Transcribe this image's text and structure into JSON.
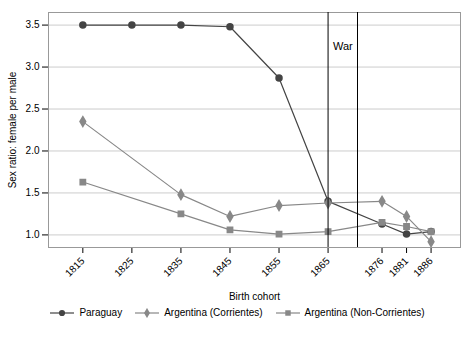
{
  "chart_data": {
    "type": "line",
    "xlabel": "Birth cohort",
    "ylabel": "Sex ratio: female per male",
    "series": [
      {
        "name": "Paraguay",
        "color": "#444444",
        "marker": "circle",
        "x": [
          1815,
          1825,
          1835,
          1845,
          1855,
          1865,
          1876,
          1881,
          1886
        ],
        "values": [
          3.5,
          3.5,
          3.5,
          3.48,
          2.87,
          1.4,
          1.13,
          1.01,
          1.04
        ]
      },
      {
        "name": "Argentina (Corrientes)",
        "color": "#888888",
        "marker": "diamond",
        "x": [
          1815,
          1835,
          1845,
          1855,
          1865,
          1876,
          1881,
          1886
        ],
        "values": [
          2.35,
          1.48,
          1.22,
          1.35,
          1.38,
          1.4,
          1.22,
          0.92
        ]
      },
      {
        "name": "Argentina (Non-Corrientes)",
        "color": "#888888",
        "marker": "square",
        "x": [
          1815,
          1835,
          1845,
          1855,
          1865,
          1876,
          1881,
          1886
        ],
        "values": [
          1.63,
          1.25,
          1.06,
          1.01,
          1.04,
          1.15,
          1.1,
          1.04
        ]
      }
    ],
    "vlines": [
      1865,
      1871
    ],
    "annotations": [
      {
        "text": "War",
        "x": 1866,
        "y": 3.3
      }
    ],
    "xlim": [
      1808,
      1892
    ],
    "xticks": [
      1815,
      1825,
      1835,
      1845,
      1855,
      1865,
      1876,
      1881,
      1886
    ],
    "ylim": [
      0.85,
      3.65
    ],
    "yticks": [
      {
        "value": 1.0,
        "label": "1.0"
      },
      1.5,
      {
        "value": 2.0,
        "label": "2.0"
      },
      2.5,
      {
        "value": 3.0,
        "label": "3.0"
      },
      3.5
    ],
    "grid": "y",
    "legend": "bottom"
  }
}
